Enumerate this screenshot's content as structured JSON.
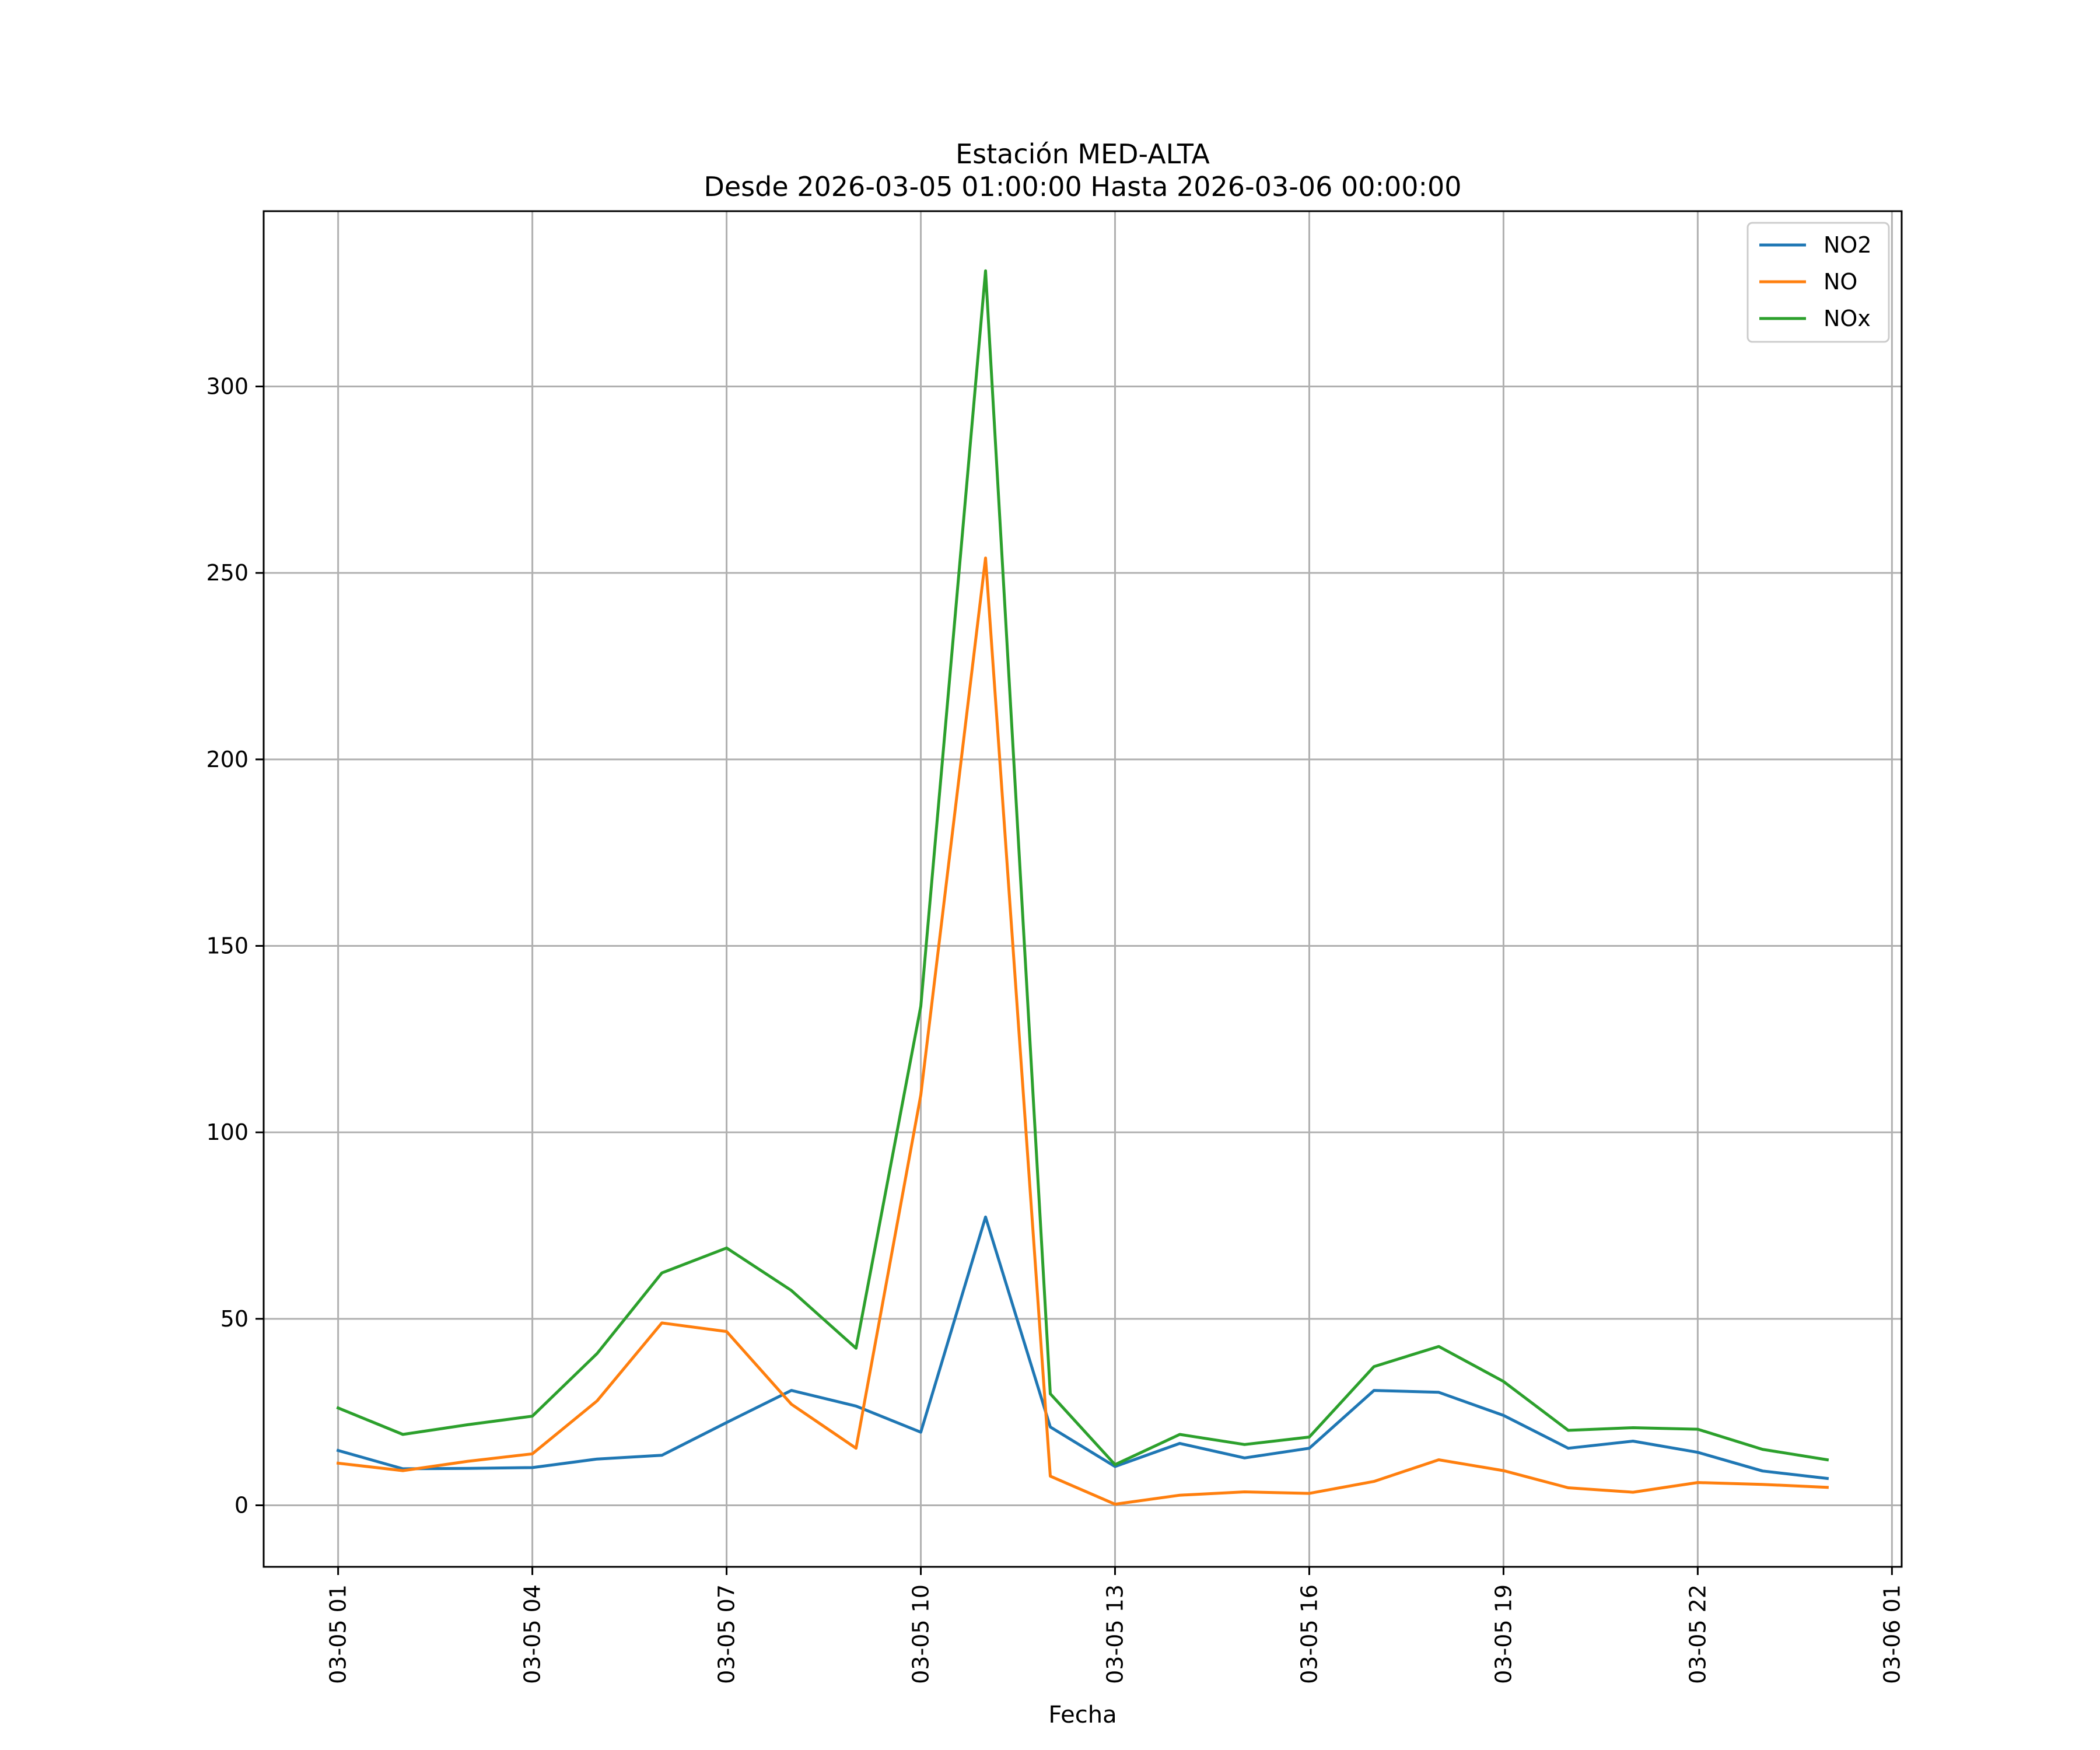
{
  "chart_data": {
    "type": "line",
    "title": "Estación MED-ALTA",
    "subtitle": "Desde 2026-03-05 01:00:00 Hasta 2026-03-06 00:00:00",
    "xlabel": "Fecha",
    "ylabel": "",
    "x": [
      "2026-03-05 01:00",
      "2026-03-05 02:00",
      "2026-03-05 03:00",
      "2026-03-05 04:00",
      "2026-03-05 05:00",
      "2026-03-05 06:00",
      "2026-03-05 07:00",
      "2026-03-05 08:00",
      "2026-03-05 09:00",
      "2026-03-05 10:00",
      "2026-03-05 11:00",
      "2026-03-05 12:00",
      "2026-03-05 13:00",
      "2026-03-05 14:00",
      "2026-03-05 15:00",
      "2026-03-05 16:00",
      "2026-03-05 17:00",
      "2026-03-05 18:00",
      "2026-03-05 19:00",
      "2026-03-05 20:00",
      "2026-03-05 21:00",
      "2026-03-05 22:00",
      "2026-03-05 23:00",
      "2026-03-06 00:00"
    ],
    "x_ticks": [
      {
        "value": "2026-03-05 01:00",
        "label": "03-05 01"
      },
      {
        "value": "2026-03-05 04:00",
        "label": "03-05 04"
      },
      {
        "value": "2026-03-05 07:00",
        "label": "03-05 07"
      },
      {
        "value": "2026-03-05 10:00",
        "label": "03-05 10"
      },
      {
        "value": "2026-03-05 13:00",
        "label": "03-05 13"
      },
      {
        "value": "2026-03-05 16:00",
        "label": "03-05 16"
      },
      {
        "value": "2026-03-05 19:00",
        "label": "03-05 19"
      },
      {
        "value": "2026-03-05 22:00",
        "label": "03-05 22"
      },
      {
        "value": "2026-03-06 01:00",
        "label": "03-06 01"
      }
    ],
    "xlim": [
      "2026-03-04 23:51",
      "2026-03-06 01:09"
    ],
    "ylim": [
      -16.5,
      347
    ],
    "y_ticks": [
      0,
      50,
      100,
      150,
      200,
      250,
      300
    ],
    "grid": true,
    "legend_position": "top-right",
    "series": [
      {
        "name": "NO2",
        "color": "#1f77b4",
        "values": [
          14.7,
          9.8,
          9.9,
          10.1,
          12.4,
          13.4,
          22.2,
          30.8,
          26.6,
          19.6,
          77.3,
          21.0,
          10.4,
          16.6,
          12.7,
          15.3,
          30.8,
          30.3,
          24.1,
          15.3,
          17.2,
          14.2,
          9.2,
          7.2
        ]
      },
      {
        "name": "NO",
        "color": "#ff7f0e",
        "values": [
          11.3,
          9.3,
          11.8,
          13.8,
          28.0,
          48.9,
          46.6,
          27.1,
          15.3,
          110.0,
          254.0,
          7.8,
          0.3,
          2.7,
          3.6,
          3.2,
          6.4,
          12.2,
          9.3,
          4.7,
          3.5,
          6.1,
          5.6,
          4.8
        ]
      },
      {
        "name": "NOx",
        "color": "#2ca02c",
        "values": [
          26.1,
          19.0,
          21.6,
          23.9,
          40.7,
          62.3,
          69.0,
          57.6,
          42.1,
          133.8,
          331.0,
          29.9,
          10.9,
          19.0,
          16.3,
          18.3,
          37.2,
          42.6,
          33.2,
          20.1,
          20.8,
          20.4,
          15.0,
          12.2
        ]
      }
    ]
  }
}
